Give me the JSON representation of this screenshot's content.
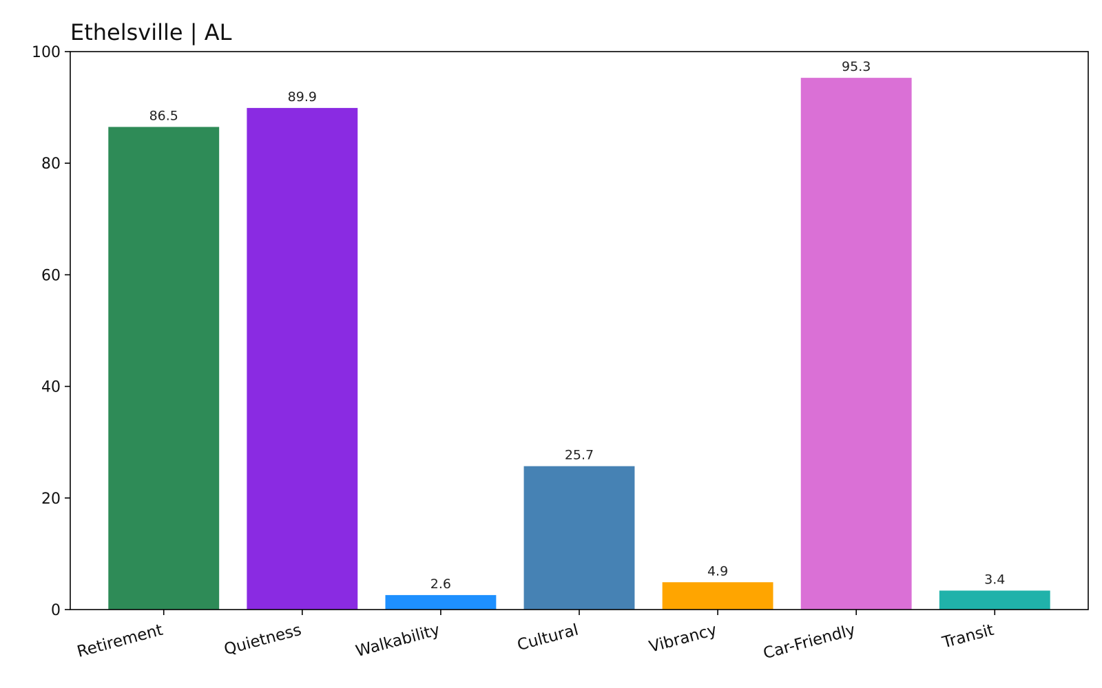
{
  "chart_data": {
    "type": "bar",
    "title": "Ethelsville | AL",
    "xlabel": "",
    "ylabel": "",
    "categories": [
      "Retirement",
      "Quietness",
      "Walkability",
      "Cultural",
      "Vibrancy",
      "Car-Friendly",
      "Transit"
    ],
    "values": [
      86.5,
      89.9,
      2.6,
      25.7,
      4.9,
      95.3,
      3.4
    ],
    "value_labels": [
      "86.5",
      "89.9",
      "2.6",
      "25.7",
      "4.9",
      "95.3",
      "3.4"
    ],
    "colors": [
      "#2e8b57",
      "#8a2be2",
      "#1e90ff",
      "#4682b4",
      "#ffa500",
      "#da70d6",
      "#20b2aa"
    ],
    "ylim": [
      0,
      100
    ],
    "yticks": [
      0,
      20,
      40,
      60,
      80,
      100
    ],
    "grid": false,
    "legend": false
  }
}
